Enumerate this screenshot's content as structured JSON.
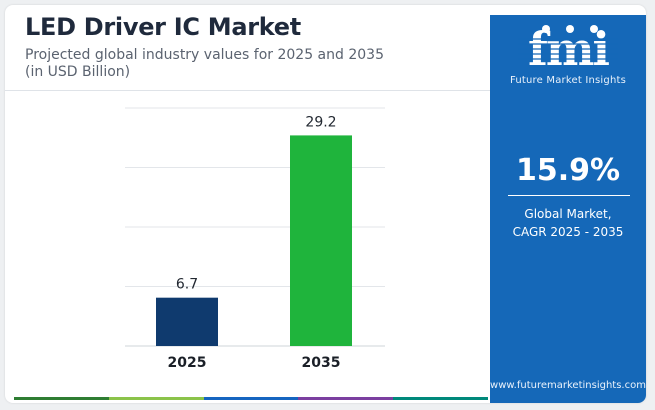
{
  "title": "LED Driver IC Market",
  "subtitle_line1": "Projected global industry values for 2025 and 2035",
  "subtitle_line2": "(in USD Billion)",
  "chart_data": {
    "type": "bar",
    "categories": [
      "2025",
      "2035"
    ],
    "values": [
      6.7,
      29.2
    ],
    "value_labels": [
      "6.7",
      "29.2"
    ],
    "bar_colors": [
      "#0f3a6e",
      "#1fb43c"
    ],
    "ylim": [
      0,
      33
    ],
    "grid": true,
    "legend": "none"
  },
  "sidebar": {
    "brand_name": "Future Market Insights",
    "cagr_value": "15.9%",
    "cagr_label_line1": "Global Market,",
    "cagr_label_line2": "CAGR 2025 - 2035",
    "website": "www.futuremarketinsights.com"
  },
  "colors": {
    "panel": "#1568b8",
    "title": "#1f2a3c",
    "accent_bar": [
      "#2e7d32",
      "#8bc34a",
      "#1565c0",
      "#7b3fa0",
      "#00897b"
    ]
  }
}
